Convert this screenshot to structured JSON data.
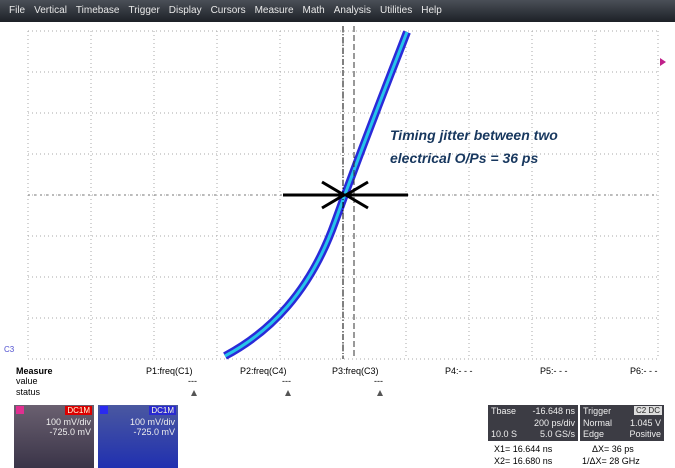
{
  "menu": [
    "File",
    "Vertical",
    "Timebase",
    "Trigger",
    "Display",
    "Cursors",
    "Measure",
    "Math",
    "Analysis",
    "Utilities",
    "Help"
  ],
  "annotation": [
    "Timing jitter between two",
    "electrical O/Ps = 36 ps"
  ],
  "channel_marker": "C3",
  "measure": {
    "title": "Measure",
    "row_labels": [
      "value",
      "status"
    ],
    "columns": [
      {
        "name": "P1:freq(C1)",
        "value": "---"
      },
      {
        "name": "P2:freq(C4)",
        "value": "---"
      },
      {
        "name": "P3:freq(C3)",
        "value": "---"
      },
      {
        "name": "P4:- - -"
      },
      {
        "name": "P5:- - -"
      },
      {
        "name": "P6:- - -"
      }
    ]
  },
  "channels": [
    {
      "coupling": "DC1M",
      "scale": "100 mV/div",
      "offset": "-725.0 mV"
    },
    {
      "coupling": "DC1M",
      "scale": "100 mV/div",
      "offset": "-725.0 mV"
    }
  ],
  "timebase": {
    "title": "Tbase",
    "delay": "-16.648 ns",
    "scale": "200 ps/div",
    "length": "10.0 S",
    "rate": "5.0 GS/s"
  },
  "trigger": {
    "title": "Trigger",
    "source": "C2 DC",
    "mode": "Normal",
    "level": "1.045 V",
    "type": "Edge",
    "slope": "Positive"
  },
  "cursors": {
    "x1": "X1= 16.644 ns",
    "dx": "ΔX= 36 ps",
    "x2": "X2= 16.680 ns",
    "inv_dx": "1/ΔX= 28 GHz"
  }
}
